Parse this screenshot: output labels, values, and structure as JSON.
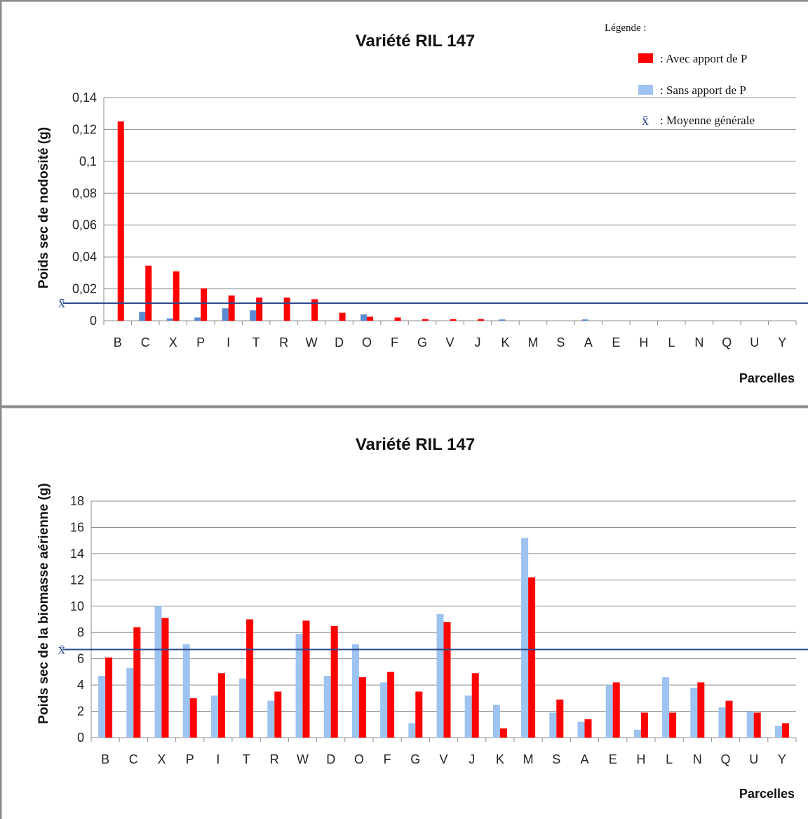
{
  "chart_data": [
    {
      "type": "bar",
      "title": "Variété RIL 147",
      "ylabel": "Poids sec de nodosité (g)",
      "xlabel": "Parcelles",
      "ylim": [
        0,
        0.14
      ],
      "yticks": [
        "0",
        "0,02",
        "0,04",
        "0,06",
        "0,08",
        "0,1",
        "0,12",
        "0,14"
      ],
      "yticks_values": [
        0,
        0.02,
        0.04,
        0.06,
        0.08,
        0.1,
        0.12,
        0.14
      ],
      "grid": true,
      "categories": [
        "B",
        "C",
        "X",
        "P",
        "I",
        "T",
        "R",
        "W",
        "D",
        "O",
        "F",
        "G",
        "V",
        "J",
        "K",
        "M",
        "S",
        "A",
        "E",
        "H",
        "L",
        "N",
        "Q",
        "U",
        "Y"
      ],
      "series": [
        {
          "name": "Sans apport de P",
          "color": "#5b8bd0",
          "values": [
            0,
            0.0055,
            0.0015,
            0.002,
            0.0078,
            0.0065,
            0,
            0,
            0,
            0.004,
            0,
            0,
            0,
            0,
            0.0008,
            0,
            0,
            0.0008,
            0,
            0,
            0,
            0,
            0,
            0,
            0
          ]
        },
        {
          "name": "Avec apport de P",
          "color": "#ff0000",
          "values": [
            0.125,
            0.0345,
            0.031,
            0.0203,
            0.0158,
            0.0145,
            0.0145,
            0.0135,
            0.005,
            0.0025,
            0.002,
            0.001,
            0.001,
            0.001,
            0,
            0,
            0,
            0,
            0,
            0,
            0,
            0,
            0,
            0,
            0
          ]
        }
      ],
      "mean": {
        "label": "x̄",
        "value": 0.011,
        "color": "#2e4a8a"
      },
      "legend": {
        "title": "Légende :",
        "position": "top-right",
        "entries": [
          {
            "text": ": Avec apport de P",
            "color": "#ff0000"
          },
          {
            "text": ": Sans apport de P",
            "color": "#9dc3f0"
          },
          {
            "text": ": Moyenne générale",
            "symbol": "x̄"
          }
        ]
      }
    },
    {
      "type": "bar",
      "title": "Variété RIL 147",
      "ylabel": "Poids sec de la biomasse aérienne (g)",
      "xlabel": "Parcelles",
      "ylim": [
        0,
        18
      ],
      "yticks": [
        "0",
        "2",
        "4",
        "6",
        "8",
        "10",
        "12",
        "14",
        "16",
        "18"
      ],
      "yticks_values": [
        0,
        2,
        4,
        6,
        8,
        10,
        12,
        14,
        16,
        18
      ],
      "grid": true,
      "categories": [
        "B",
        "C",
        "X",
        "P",
        "I",
        "T",
        "R",
        "W",
        "D",
        "O",
        "F",
        "G",
        "V",
        "J",
        "K",
        "M",
        "S",
        "A",
        "E",
        "H",
        "L",
        "N",
        "Q",
        "U",
        "Y"
      ],
      "series": [
        {
          "name": "Sans apport de P",
          "color": "#9dc3f0",
          "values": [
            4.7,
            5.3,
            10.0,
            7.1,
            3.2,
            4.5,
            2.8,
            7.9,
            4.7,
            7.1,
            4.2,
            1.1,
            9.4,
            3.2,
            2.5,
            15.2,
            1.9,
            1.2,
            4.0,
            0.6,
            4.6,
            3.8,
            2.3,
            2.0,
            0.9
          ]
        },
        {
          "name": "Avec apport de P",
          "color": "#ff0000",
          "values": [
            6.1,
            8.4,
            9.1,
            3.0,
            4.9,
            9.0,
            3.5,
            8.9,
            8.5,
            4.6,
            5.0,
            3.5,
            8.8,
            4.9,
            0.7,
            12.2,
            2.9,
            1.4,
            4.2,
            1.9,
            1.9,
            4.2,
            2.8,
            1.9,
            1.1
          ]
        }
      ],
      "mean": {
        "label": "x̄",
        "value": 6.7,
        "color": "#2e4a8a"
      }
    }
  ]
}
